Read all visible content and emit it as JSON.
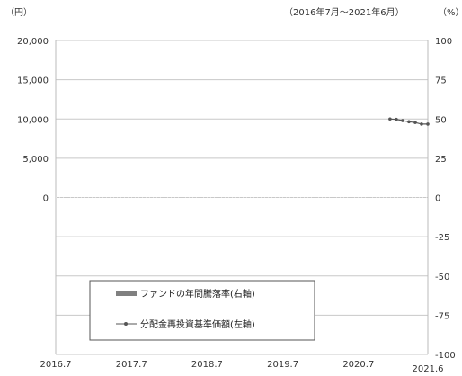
{
  "chart_data": {
    "type": "line",
    "period_note": "（2016年7月～2021年6月）",
    "left_axis_unit": "（円）",
    "right_axis_unit": "（%）",
    "left_axis": {
      "ylim": [
        -20000,
        20000
      ],
      "tick_values": [
        0,
        5000,
        10000,
        15000,
        20000
      ],
      "tick_labels": [
        "0",
        "5,000",
        "10,000",
        "15,000",
        "20,000"
      ]
    },
    "right_axis": {
      "ylim": [
        -100,
        100
      ],
      "tick_values": [
        100,
        75,
        50,
        25,
        0,
        -25,
        -50,
        -75,
        -100
      ],
      "tick_labels": [
        "100",
        "75",
        "50",
        "25",
        "0",
        "-25",
        "-50",
        "-75",
        "-100"
      ]
    },
    "x_axis": {
      "ticks": [
        "2016.7",
        "2017.7",
        "2018.7",
        "2019.7",
        "2020.7",
        "2021.6"
      ]
    },
    "grid": true,
    "legend": {
      "placement": "bottom-left",
      "items": [
        {
          "label": "ファンドの年間騰落率(右軸)",
          "style": "bar",
          "color": "#808080"
        },
        {
          "label": "分配金再投資基準価額(左軸)",
          "style": "line-marker",
          "color": "#555555"
        }
      ]
    },
    "series": [
      {
        "name": "分配金再投資基準価額(左軸)",
        "axis": "left",
        "color": "#555555",
        "x": [
          "2020.12",
          "2021.1",
          "2021.2",
          "2021.3",
          "2021.4",
          "2021.5",
          "2021.6"
        ],
        "values": [
          10000,
          9950,
          9800,
          9650,
          9550,
          9350,
          9350
        ]
      },
      {
        "name": "ファンドの年間騰落率(右軸)",
        "axis": "right",
        "color": "#808080",
        "x": [],
        "values": []
      }
    ]
  }
}
